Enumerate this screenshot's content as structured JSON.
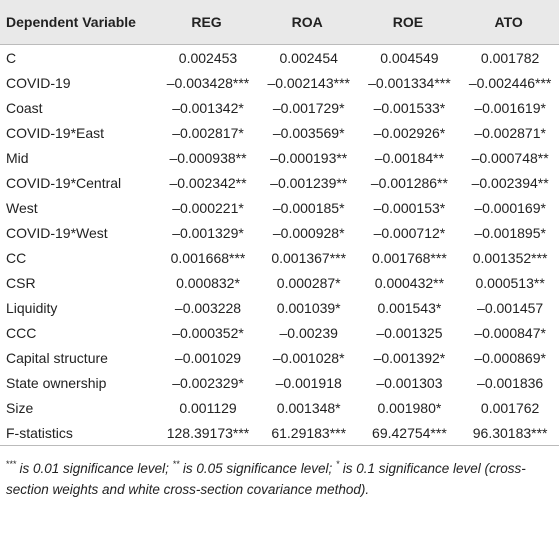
{
  "table": {
    "header": [
      "Dependent Variable",
      "REG",
      "ROA",
      "ROE",
      "ATO"
    ],
    "rows": [
      [
        "C",
        "0.002453",
        "0.002454",
        "0.004549",
        "0.001782"
      ],
      [
        "COVID-19",
        "–0.003428***",
        "–0.002143***",
        "–0.001334***",
        "–0.002446***"
      ],
      [
        "Coast",
        "–0.001342*",
        "–0.001729*",
        "–0.001533*",
        "–0.001619*"
      ],
      [
        "COVID-19*East",
        "–0.002817*",
        "–0.003569*",
        "–0.002926*",
        "–0.002871*"
      ],
      [
        "Mid",
        "–0.000938**",
        "–0.000193**",
        "–0.00184**",
        "–0.000748**"
      ],
      [
        "COVID-19*Central",
        "–0.002342**",
        "–0.001239**",
        "–0.001286**",
        "–0.002394**"
      ],
      [
        "West",
        "–0.000221*",
        "–0.000185*",
        "–0.000153*",
        "–0.000169*"
      ],
      [
        "COVID-19*West",
        "–0.001329*",
        "–0.000928*",
        "–0.000712*",
        "–0.001895*"
      ],
      [
        "CC",
        "0.001668***",
        "0.001367***",
        "0.001768***",
        "0.001352***"
      ],
      [
        "CSR",
        "0.000832*",
        "0.000287*",
        "0.000432**",
        "0.000513**"
      ],
      [
        "Liquidity",
        "–0.003228",
        "0.001039*",
        "0.001543*",
        "–0.001457"
      ],
      [
        "CCC",
        "–0.000352*",
        "–0.00239",
        "–0.001325",
        "–0.000847*"
      ],
      [
        "Capital structure",
        "–0.001029",
        "–0.001028*",
        "–0.001392*",
        "–0.000869*"
      ],
      [
        "State ownership",
        "–0.002329*",
        "–0.001918",
        "–0.001303",
        "–0.001836"
      ],
      [
        "Size",
        "0.001129",
        "0.001348*",
        "0.001980*",
        "0.001762"
      ],
      [
        "F-statistics",
        "128.39173***",
        "61.29183***",
        "69.42754***",
        "96.30183***"
      ]
    ]
  },
  "footnote": [
    {
      "sup": "***",
      "text": "is 0.01 significance level;"
    },
    {
      "sup": "**",
      "text": "is 0.05 significance level;"
    },
    {
      "sup": "*",
      "text": "is 0.1 significance level (cross-section weights and white cross-section covariance method)."
    }
  ]
}
